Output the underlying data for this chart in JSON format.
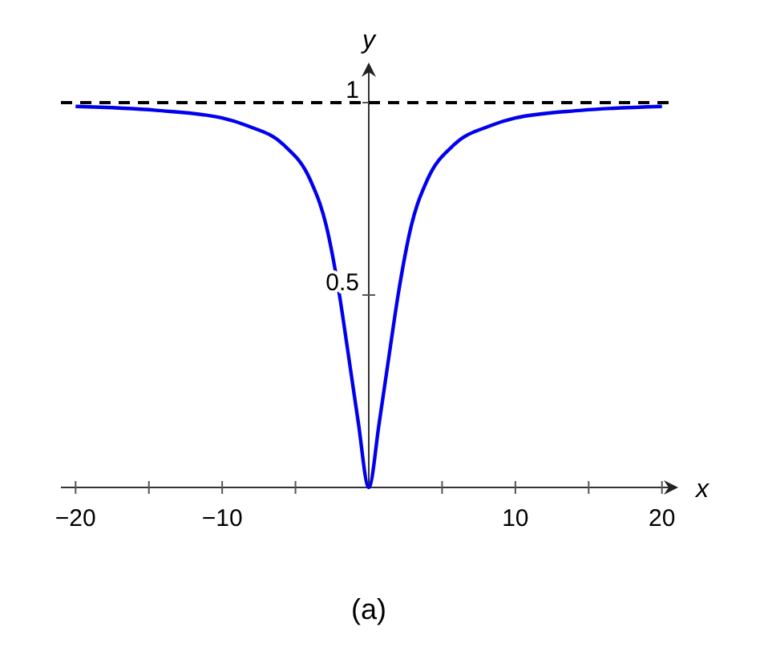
{
  "chart_data": {
    "type": "line",
    "xlabel": "x",
    "ylabel": "y",
    "x": [
      -20,
      -14.5,
      -10,
      -8.3,
      -5.8,
      -4,
      -2.9,
      -2,
      -1.45,
      -0.72,
      0,
      0.72,
      1.45,
      2,
      2.9,
      4,
      5.8,
      8.3,
      10,
      14.5,
      20
    ],
    "series": [
      {
        "color": "#0000ee",
        "values": [
          0.99,
          0.98,
          0.96,
          0.94,
          0.89,
          0.8,
          0.68,
          0.5,
          0.36,
          0.17,
          0,
          0.17,
          0.36,
          0.5,
          0.68,
          0.8,
          0.89,
          0.94,
          0.96,
          0.98,
          0.99
        ]
      }
    ],
    "xlim": [
      -21,
      21
    ],
    "ylim": [
      0,
      1.1
    ],
    "xticks": [
      {
        "value": -20,
        "label": "−20"
      },
      {
        "value": -15,
        "label": null
      },
      {
        "value": -10,
        "label": "−10"
      },
      {
        "value": -5,
        "label": null
      },
      {
        "value": 5,
        "label": null
      },
      {
        "value": 10,
        "label": "10"
      },
      {
        "value": 15,
        "label": null
      },
      {
        "value": 20,
        "label": "20"
      }
    ],
    "yticks": [
      0.5,
      1
    ],
    "ref_lines": [
      {
        "axis": "y",
        "value": 1,
        "color": "#000000",
        "line_style": "dashed"
      }
    ],
    "grid": false,
    "annotations": [
      "(a)"
    ]
  }
}
